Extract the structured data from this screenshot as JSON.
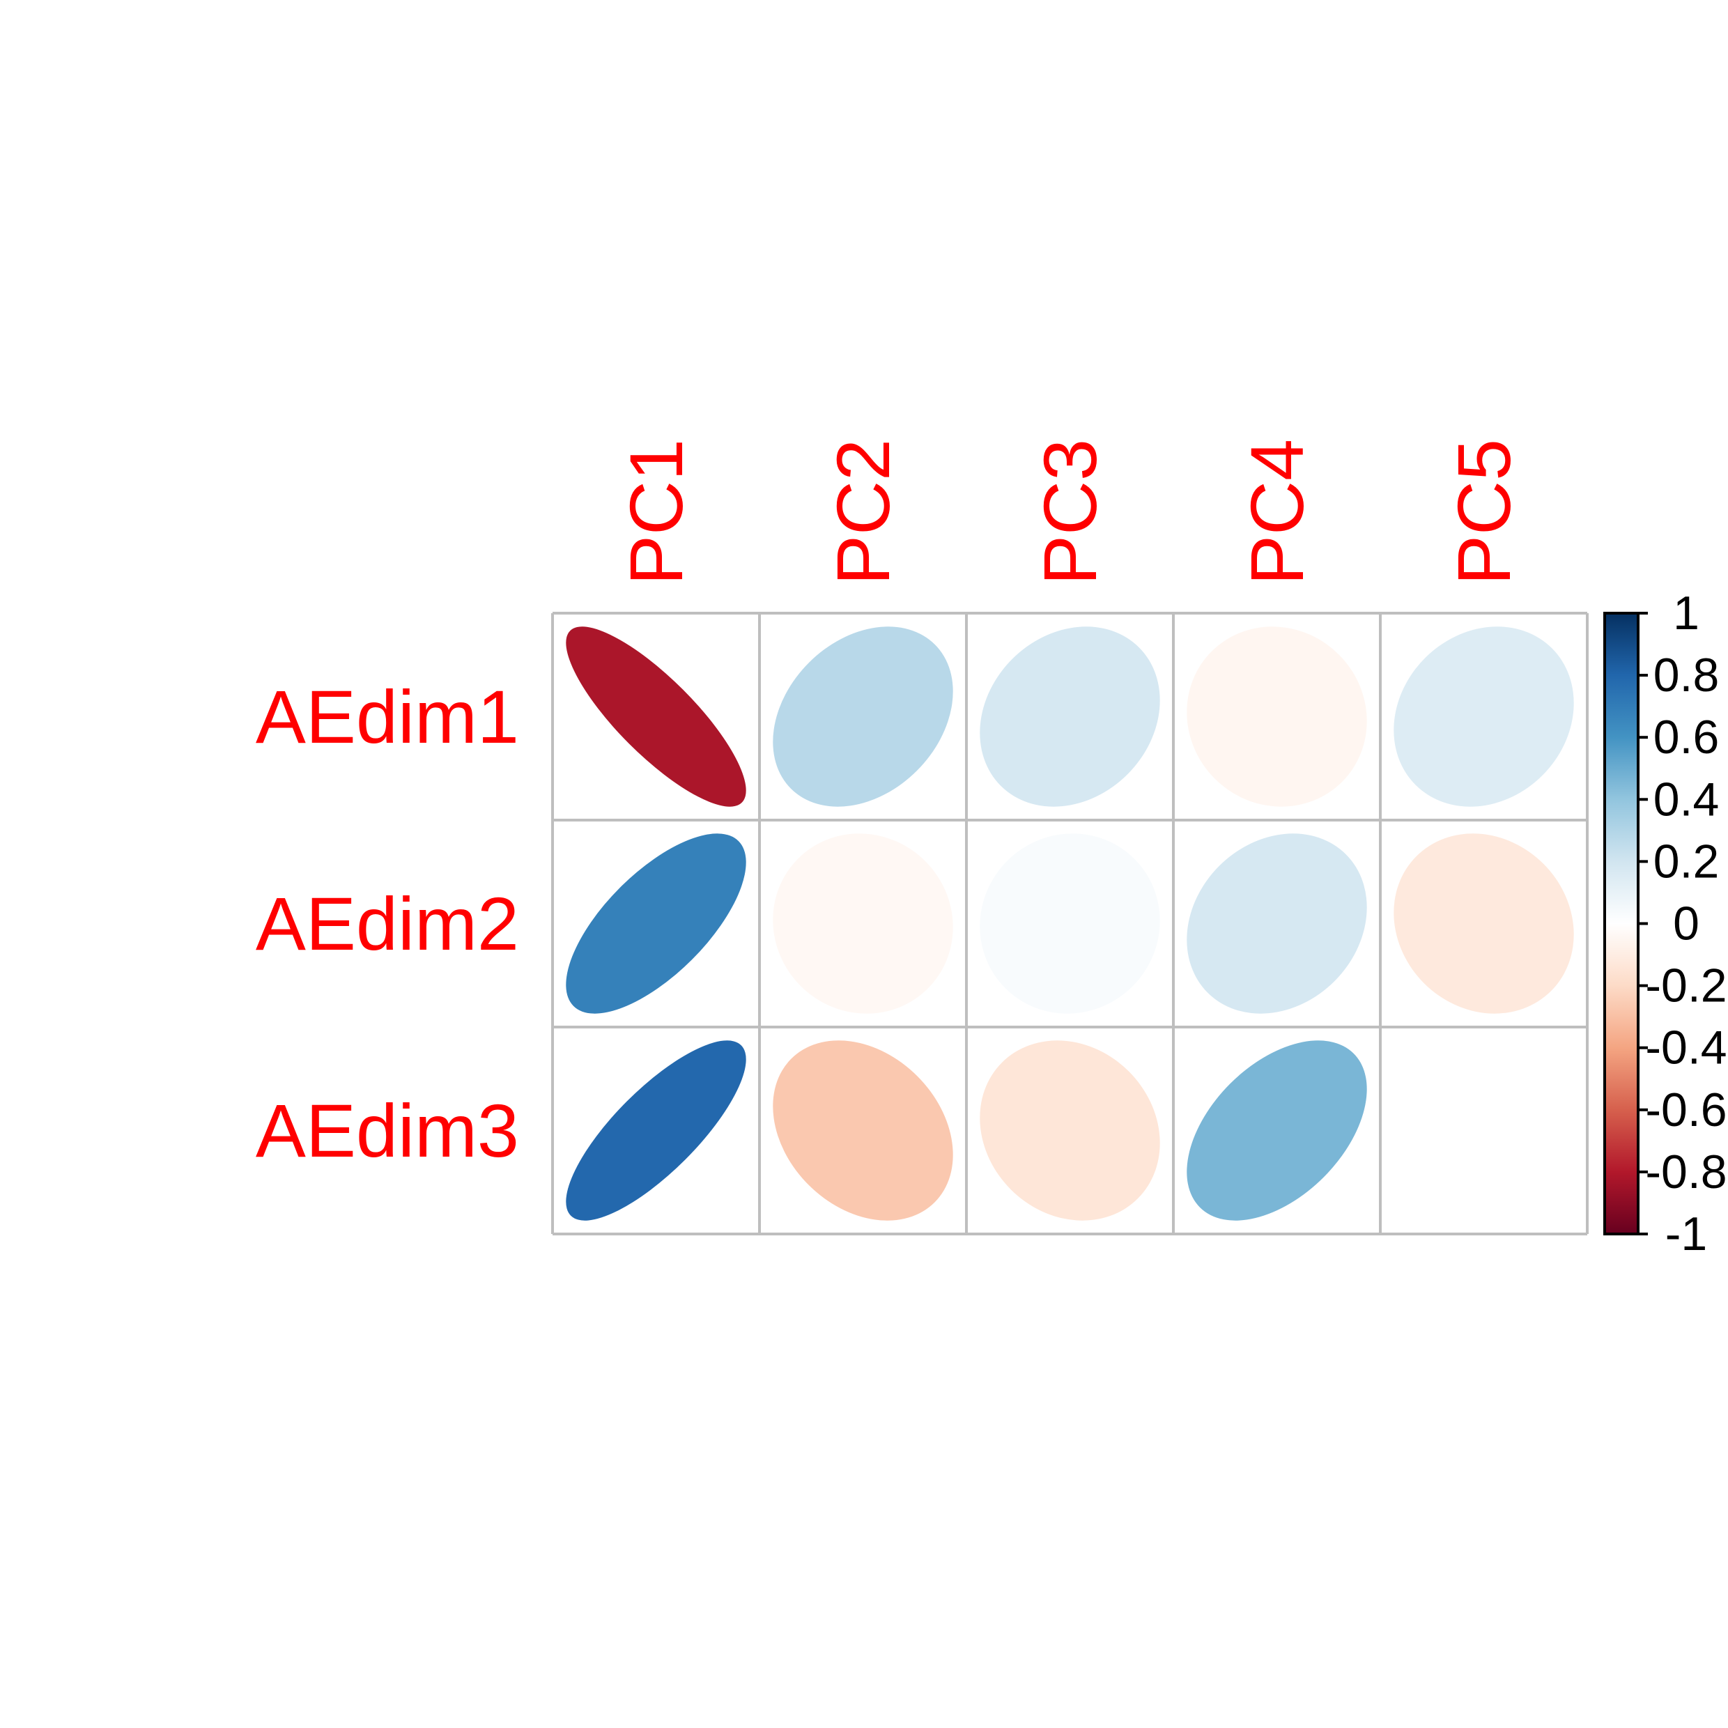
{
  "chart_data": {
    "type": "heatmap",
    "subtype": "correlation-ellipse",
    "rows": [
      "AEdim1",
      "AEdim2",
      "AEdim3"
    ],
    "columns": [
      "PC1",
      "PC2",
      "PC3",
      "PC4",
      "PC5"
    ],
    "values": [
      [
        -0.82,
        0.28,
        0.18,
        -0.05,
        0.15
      ],
      [
        0.68,
        -0.04,
        0.03,
        0.18,
        -0.12
      ],
      [
        0.79,
        -0.27,
        -0.14,
        0.46,
        0.0
      ]
    ],
    "label_color": "#FF0000",
    "grid_color": "#BEBEBE",
    "colorbar": {
      "range": [
        -1,
        1
      ],
      "ticks": [
        "1",
        "0.8",
        "0.6",
        "0.4",
        "0.2",
        "0",
        "-0.2",
        "-0.4",
        "-0.6",
        "-0.8",
        "-1"
      ],
      "palette": [
        "#67001F",
        "#B2182B",
        "#D6604D",
        "#F4A582",
        "#FDDBC7",
        "#FFFFFF",
        "#D1E5F0",
        "#92C5DE",
        "#4393C3",
        "#2166AC",
        "#053061"
      ]
    }
  }
}
